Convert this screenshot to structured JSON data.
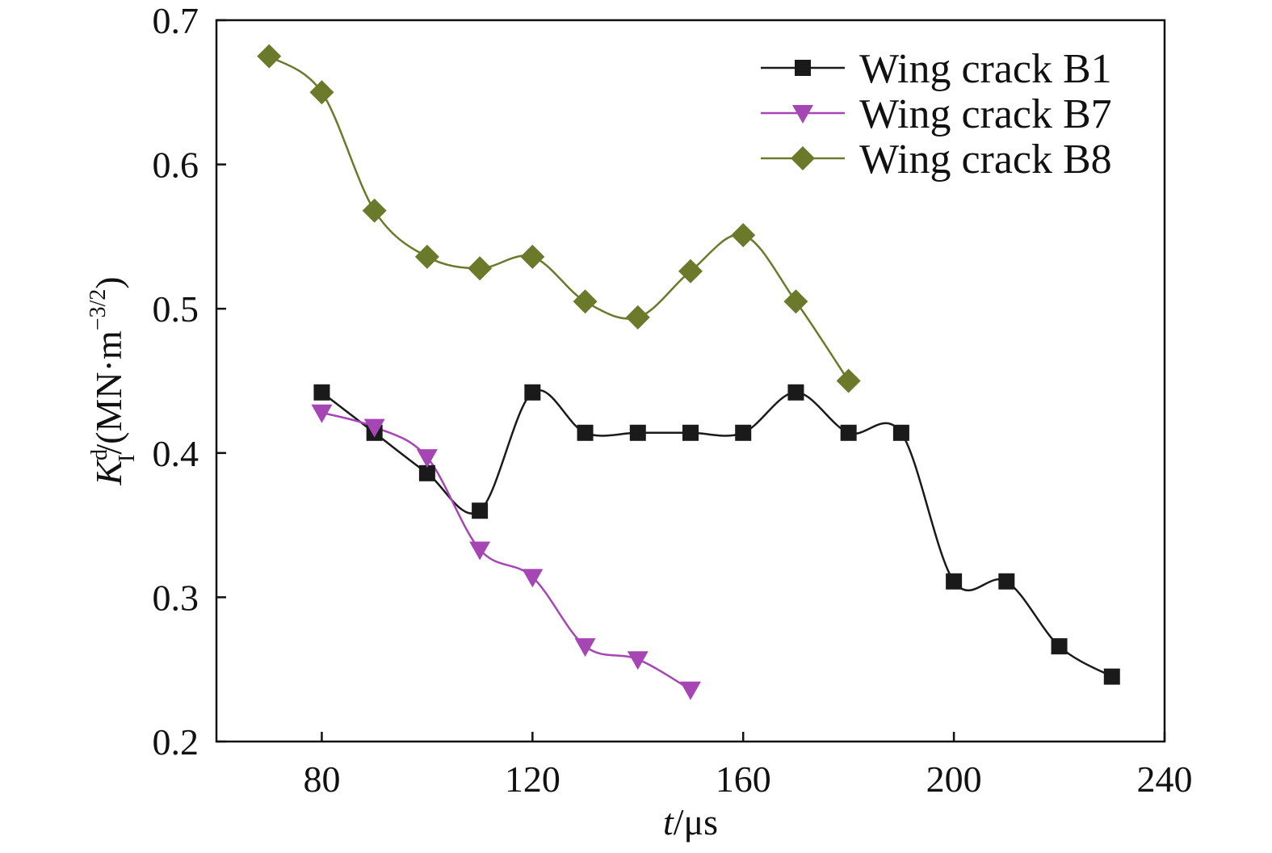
{
  "chart_data": {
    "type": "line",
    "xlabel": {
      "italic": "t",
      "rest": "/μs"
    },
    "ylabel": {
      "main": "K",
      "sub": "I",
      "sup": "d",
      "rest": "/(MN·m",
      "unit_sup": "−3/2",
      "close": ")"
    },
    "xlim": [
      60,
      240
    ],
    "ylim": [
      0.2,
      0.7
    ],
    "xticks": [
      80,
      120,
      160,
      200,
      240
    ],
    "yticks": [
      0.2,
      0.3,
      0.4,
      0.5,
      0.6,
      0.7
    ],
    "xtick_labels": [
      "80",
      "120",
      "160",
      "200",
      "240"
    ],
    "ytick_labels": [
      "0.2",
      "0.3",
      "0.4",
      "0.5",
      "0.6",
      "0.7"
    ],
    "legend_position": "top-right",
    "grid": false,
    "series": [
      {
        "name": "Wing crack B1",
        "marker": "square",
        "color": "#1a1a1a",
        "x": [
          80,
          90,
          100,
          110,
          120,
          130,
          140,
          150,
          160,
          170,
          180,
          190,
          200,
          210,
          220,
          230
        ],
        "y": [
          0.442,
          0.414,
          0.386,
          0.36,
          0.442,
          0.414,
          0.414,
          0.414,
          0.414,
          0.442,
          0.414,
          0.414,
          0.311,
          0.311,
          0.266,
          0.245
        ]
      },
      {
        "name": "Wing crack B7",
        "marker": "triangle-down",
        "color": "#a646b4",
        "x": [
          80,
          90,
          100,
          110,
          120,
          130,
          140,
          150
        ],
        "y": [
          0.428,
          0.418,
          0.397,
          0.333,
          0.314,
          0.266,
          0.257,
          0.236
        ]
      },
      {
        "name": "Wing crack B8",
        "marker": "diamond",
        "color": "#6b7a2a",
        "x": [
          70,
          80,
          90,
          100,
          110,
          120,
          130,
          140,
          150,
          160,
          170,
          180
        ],
        "y": [
          0.675,
          0.65,
          0.568,
          0.536,
          0.528,
          0.536,
          0.505,
          0.494,
          0.526,
          0.551,
          0.505,
          0.45
        ]
      }
    ]
  }
}
